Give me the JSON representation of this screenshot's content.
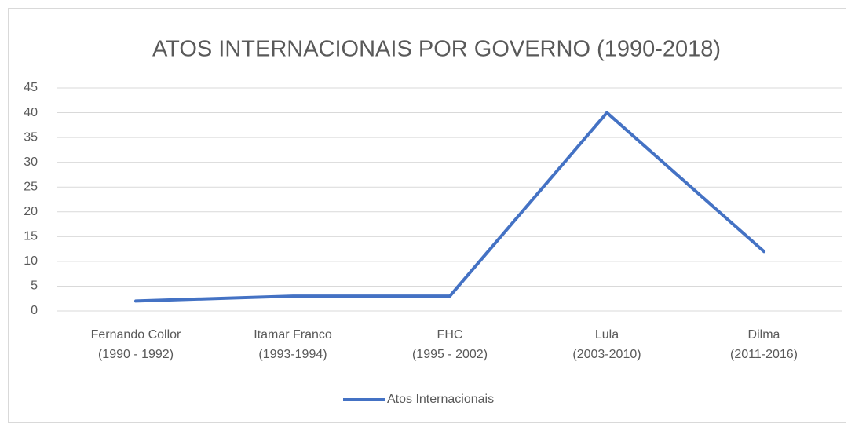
{
  "chart_data": {
    "type": "line",
    "title": "ATOS INTERNACIONAIS POR GOVERNO (1990-2018)",
    "categories": [
      [
        "Fernando Collor",
        "(1990 - 1992)"
      ],
      [
        "Itamar Franco",
        "(1993-1994)"
      ],
      [
        "FHC",
        "(1995 - 2002)"
      ],
      [
        "Lula",
        "(2003-2010)"
      ],
      [
        "Dilma",
        "(2011-2016)"
      ]
    ],
    "series": [
      {
        "name": "Atos Internacionais",
        "color": "#4472c4",
        "values": [
          2,
          3,
          3,
          40,
          12
        ]
      }
    ],
    "ylim": [
      0,
      45
    ],
    "yticks": [
      0,
      5,
      10,
      15,
      20,
      25,
      30,
      35,
      40,
      45
    ],
    "grid": true,
    "legend": "bottom"
  }
}
